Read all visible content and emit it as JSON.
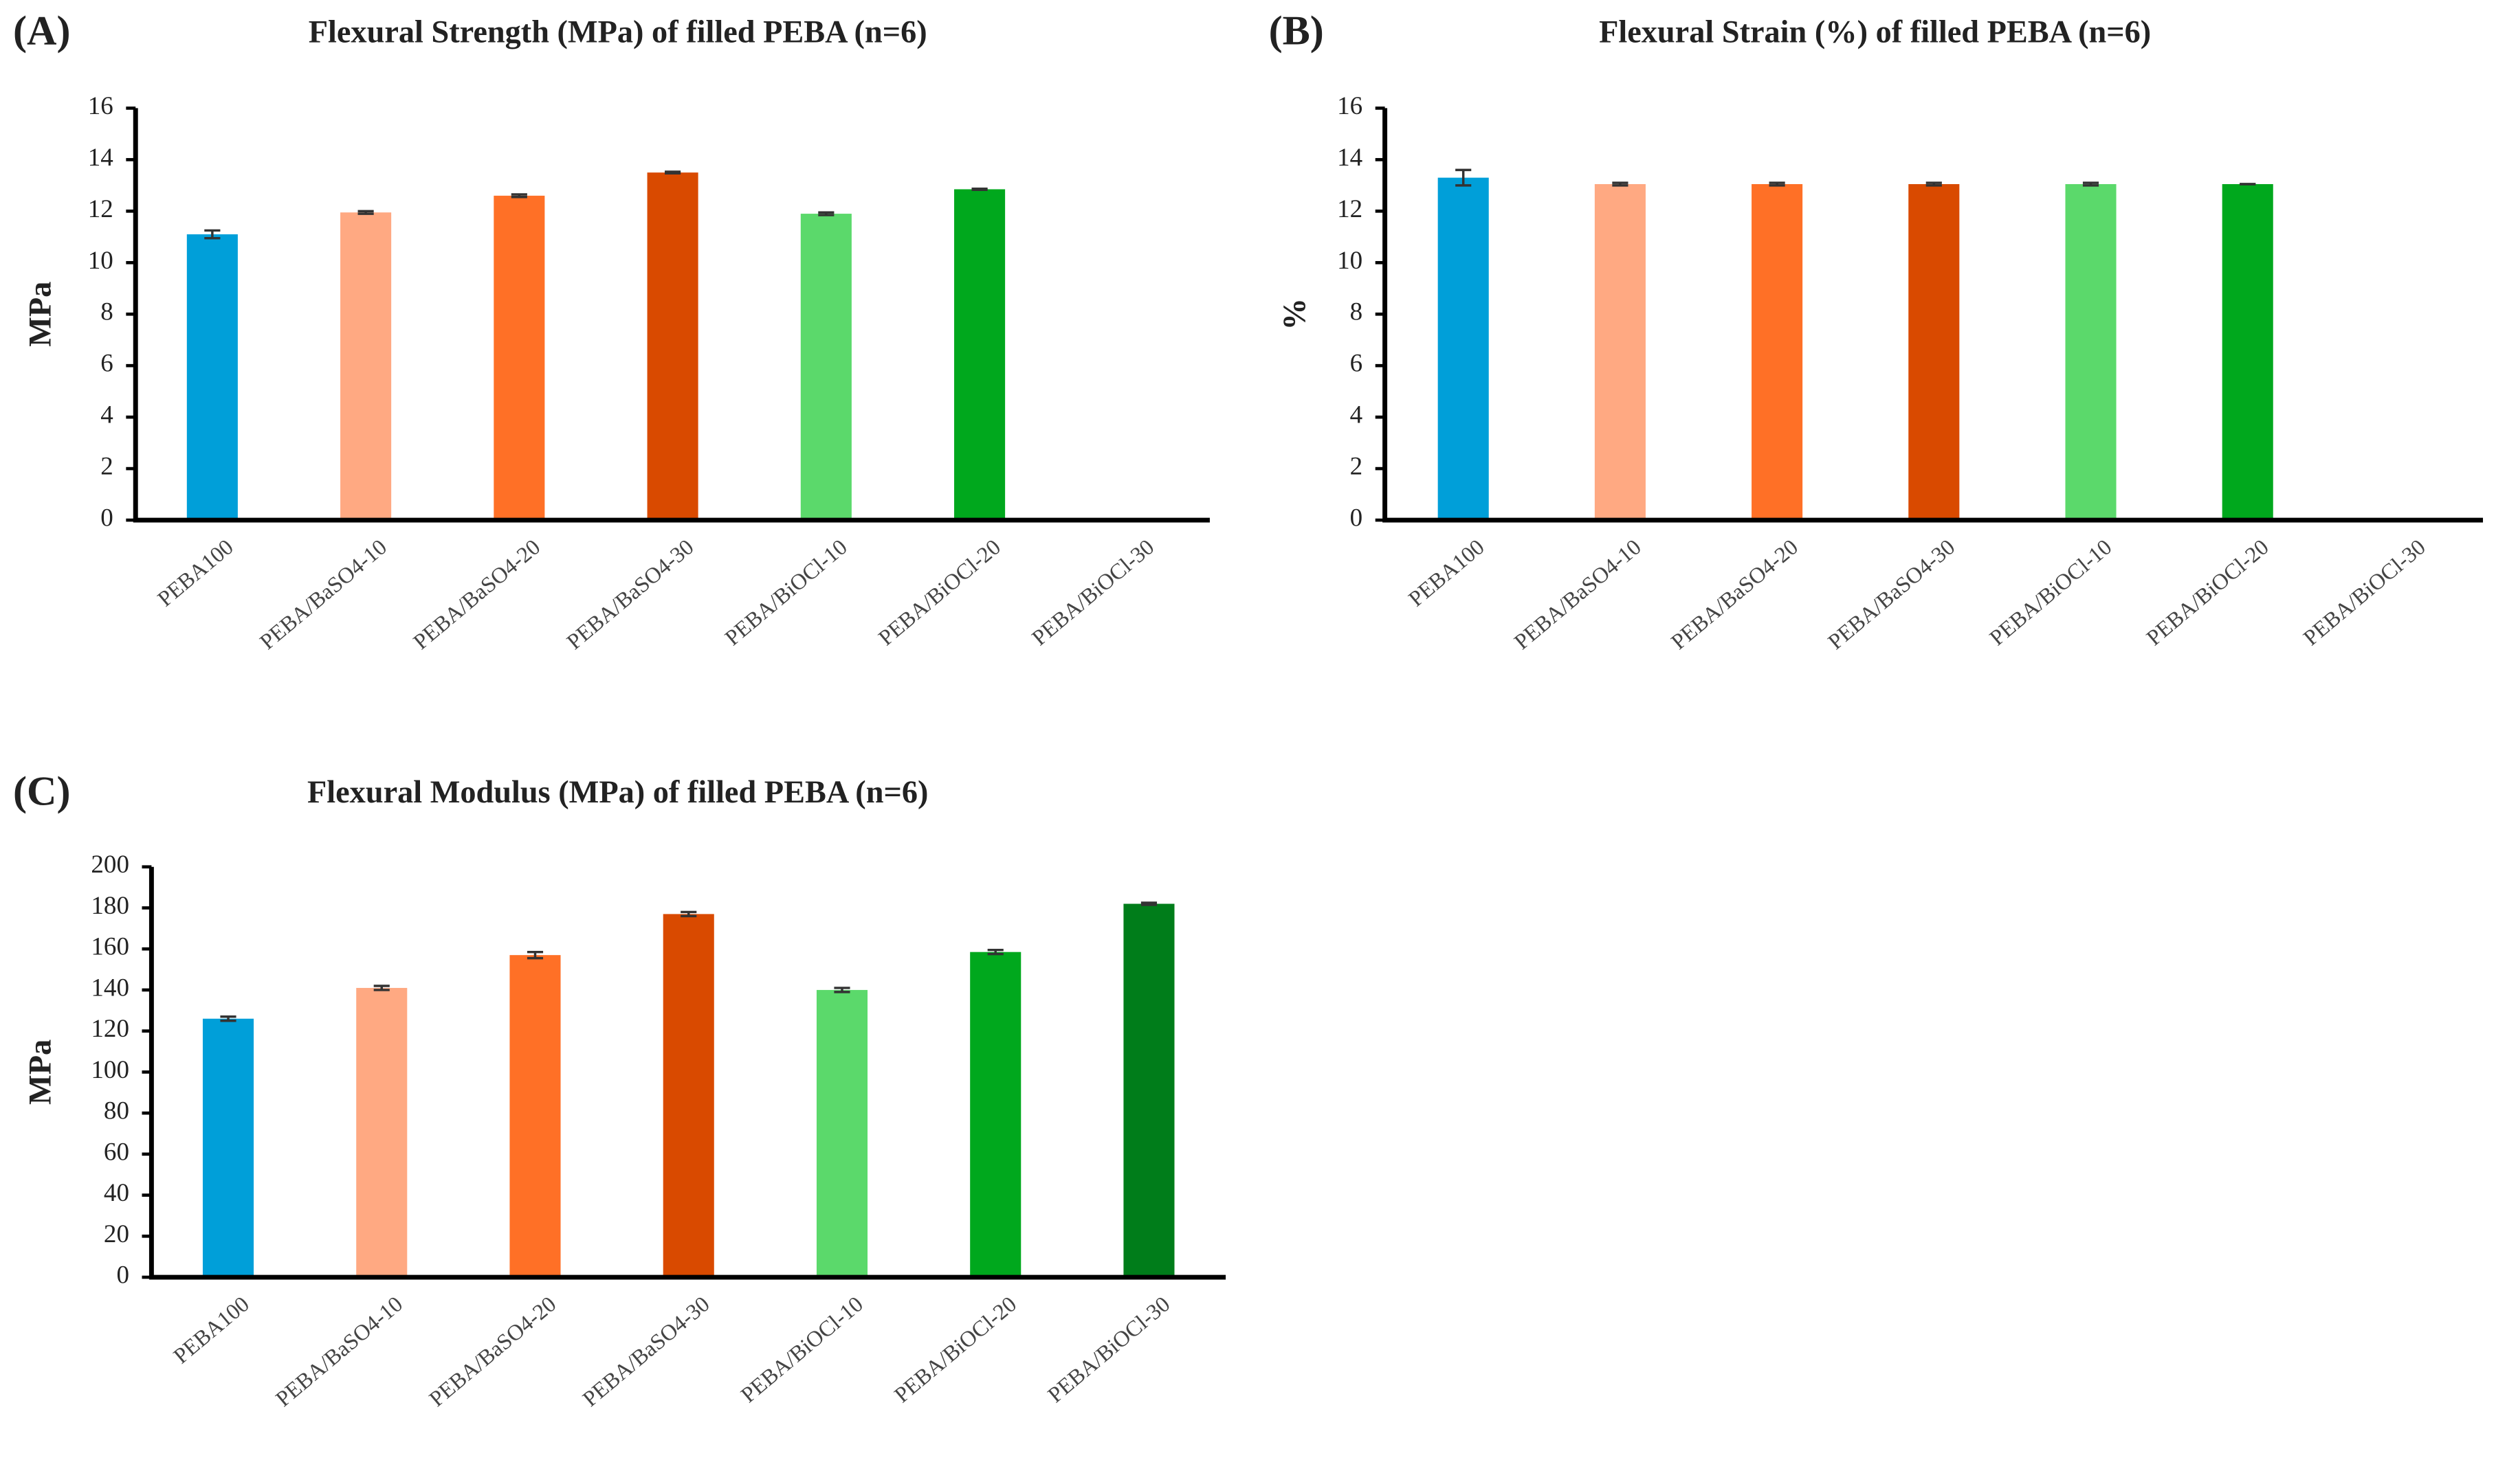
{
  "chart_data": [
    {
      "type": "bar",
      "panel": "(A)",
      "title": "Flexural Strength (MPa) of filled PEBA (n=6)",
      "y_label": "MPa",
      "categories": [
        "PEBA100",
        "PEBA/BaSO4-10",
        "PEBA/BaSO4-20",
        "PEBA/BaSO4-30",
        "PEBA/BiOCl-10",
        "PEBA/BiOCl-20",
        "PEBA/BiOCl-30"
      ],
      "values": [
        11.1,
        11.95,
        12.6,
        13.5,
        11.9,
        12.85,
        null
      ],
      "errors": [
        0.15,
        0.05,
        0.05,
        0.03,
        0.05,
        0.02,
        null
      ],
      "colors": [
        "#009fd9",
        "#ffa982",
        "#ff7026",
        "#d94a00",
        "#5bd96b",
        "#00a81d",
        "#007d1a"
      ],
      "ylim": [
        0,
        16
      ],
      "yticks": [
        0,
        2,
        4,
        6,
        8,
        10,
        12,
        14,
        16
      ]
    },
    {
      "type": "bar",
      "panel": "(B)",
      "title": "Flexural Strain (%) of filled PEBA (n=6)",
      "y_label": "%",
      "categories": [
        "PEBA100",
        "PEBA/BaSO4-10",
        "PEBA/BaSO4-20",
        "PEBA/BaSO4-30",
        "PEBA/BiOCl-10",
        "PEBA/BiOCl-20",
        "PEBA/BiOCl-30"
      ],
      "values": [
        13.3,
        13.05,
        13.05,
        13.05,
        13.05,
        13.05,
        null
      ],
      "errors": [
        0.3,
        0.05,
        0.05,
        0.05,
        0.05,
        0,
        null
      ],
      "colors": [
        "#009fd9",
        "#ffa982",
        "#ff7026",
        "#d94a00",
        "#5bd96b",
        "#00a81d",
        "#007d1a"
      ],
      "ylim": [
        0,
        16
      ],
      "yticks": [
        0,
        2,
        4,
        6,
        8,
        10,
        12,
        14,
        16
      ]
    },
    {
      "type": "bar",
      "panel": "(C)",
      "title": "Flexural Modulus (MPa) of filled PEBA (n=6)",
      "y_label": "MPa",
      "categories": [
        "PEBA100",
        "PEBA/BaSO4-10",
        "PEBA/BaSO4-20",
        "PEBA/BaSO4-30",
        "PEBA/BiOCl-10",
        "PEBA/BiOCl-20",
        "PEBA/BiOCl-30"
      ],
      "values": [
        126,
        141,
        157,
        177,
        140,
        158.5,
        182
      ],
      "errors": [
        1,
        1,
        1.5,
        1,
        1,
        1,
        0.5
      ],
      "colors": [
        "#009fd9",
        "#ffa982",
        "#ff7026",
        "#d94a00",
        "#5bd96b",
        "#00a81d",
        "#007d1a"
      ],
      "ylim": [
        0,
        200
      ],
      "yticks": [
        0,
        20,
        40,
        60,
        80,
        100,
        120,
        140,
        160,
        180,
        200
      ]
    }
  ]
}
